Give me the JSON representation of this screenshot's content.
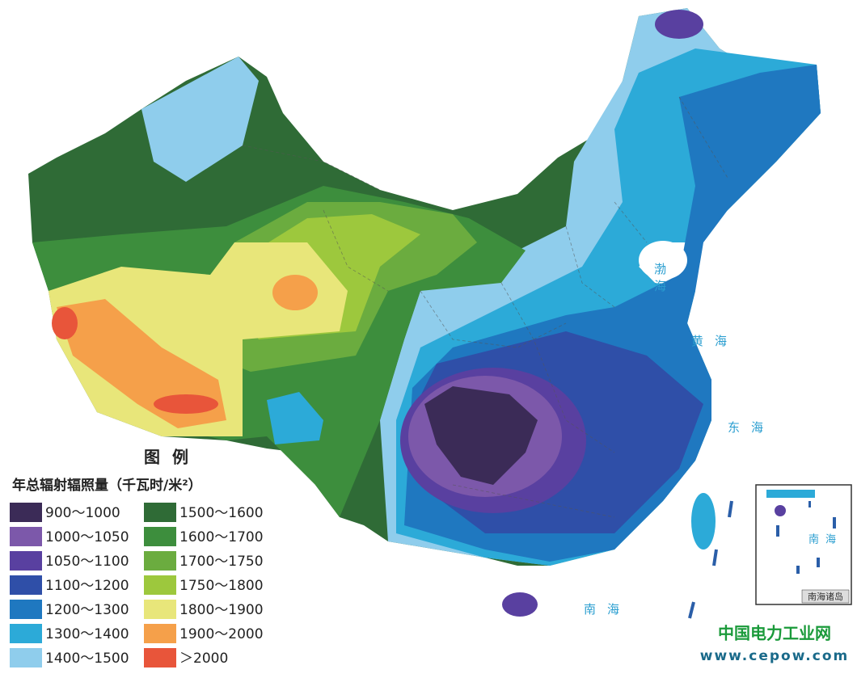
{
  "legend": {
    "title": "图 例",
    "unit": "年总辐射辐照量（千瓦时/米²）",
    "items": [
      {
        "label": "900～1000",
        "color": "#3b2b57"
      },
      {
        "label": "1000～1050",
        "color": "#7c58aa"
      },
      {
        "label": "1050～1100",
        "color": "#5940a0"
      },
      {
        "label": "1100～1200",
        "color": "#2f4fa8"
      },
      {
        "label": "1200～1300",
        "color": "#1f78c0"
      },
      {
        "label": "1300～1400",
        "color": "#2caad8"
      },
      {
        "label": "1400～1500",
        "color": "#8fcdec"
      },
      {
        "label": "1500～1600",
        "color": "#2f6b36"
      },
      {
        "label": "1600～1700",
        "color": "#3d8e3d"
      },
      {
        "label": "1700～1750",
        "color": "#6bac3f"
      },
      {
        "label": "1750～1800",
        "color": "#9dc83d"
      },
      {
        "label": "1800～1900",
        "color": "#e8e67a"
      },
      {
        "label": "1900～2000",
        "color": "#f5a04a"
      },
      {
        "label": "＞2000",
        "color": "#e8553a"
      }
    ]
  },
  "seas": [
    "渤海",
    "黄海",
    "东海",
    "南海"
  ],
  "inset": {
    "sea": "南海",
    "caption": "南海诸岛"
  },
  "watermark": {
    "name": "中国电力工业网",
    "url": "www.cepow.com"
  }
}
